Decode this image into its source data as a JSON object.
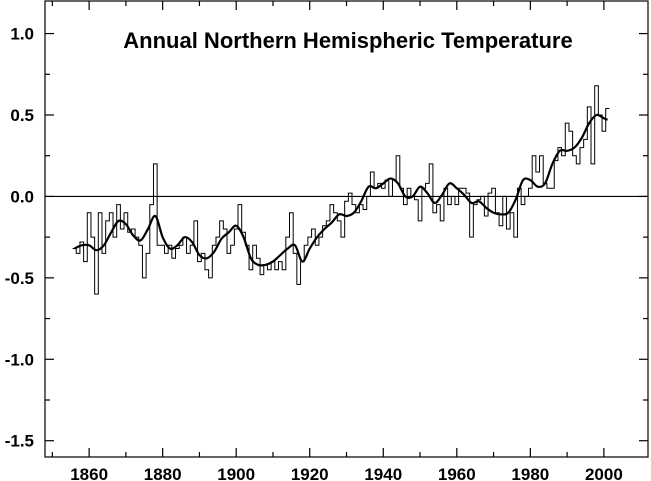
{
  "chart_data": {
    "type": "line",
    "title": "Annual Northern Hemispheric Temperature",
    "xlabel": "",
    "ylabel": "",
    "xlim": [
      1848,
      2012
    ],
    "ylim": [
      -1.6,
      1.2
    ],
    "grid": false,
    "zero_line": true,
    "x_ticks": [
      {
        "value": 1860,
        "label": "1860"
      },
      {
        "value": 1880,
        "label": "1880"
      },
      {
        "value": 1900,
        "label": "1900"
      },
      {
        "value": 1920,
        "label": "1920"
      },
      {
        "value": 1940,
        "label": "1940"
      },
      {
        "value": 1960,
        "label": "1960"
      },
      {
        "value": 1980,
        "label": "1980"
      },
      {
        "value": 2000,
        "label": "2000"
      }
    ],
    "y_ticks": [
      {
        "value": 1.0,
        "label": "1.0"
      },
      {
        "value": 0.5,
        "label": "0.5"
      },
      {
        "value": 0.0,
        "label": "0.0"
      },
      {
        "value": -0.5,
        "label": "-0.5"
      },
      {
        "value": -1.0,
        "label": "-1.0"
      },
      {
        "value": -1.5,
        "label": "-1.5"
      }
    ],
    "series": [
      {
        "style": "step",
        "x": [
          1856,
          1857,
          1858,
          1859,
          1860,
          1861,
          1862,
          1863,
          1864,
          1865,
          1866,
          1867,
          1868,
          1869,
          1870,
          1871,
          1872,
          1873,
          1874,
          1875,
          1876,
          1877,
          1878,
          1879,
          1880,
          1881,
          1882,
          1883,
          1884,
          1885,
          1886,
          1887,
          1888,
          1889,
          1890,
          1891,
          1892,
          1893,
          1894,
          1895,
          1896,
          1897,
          1898,
          1899,
          1900,
          1901,
          1902,
          1903,
          1904,
          1905,
          1906,
          1907,
          1908,
          1909,
          1910,
          1911,
          1912,
          1913,
          1914,
          1915,
          1916,
          1917,
          1918,
          1919,
          1920,
          1921,
          1922,
          1923,
          1924,
          1925,
          1926,
          1927,
          1928,
          1929,
          1930,
          1931,
          1932,
          1933,
          1934,
          1935,
          1936,
          1937,
          1938,
          1939,
          1940,
          1941,
          1942,
          1943,
          1944,
          1945,
          1946,
          1947,
          1948,
          1949,
          1950,
          1951,
          1952,
          1953,
          1954,
          1955,
          1956,
          1957,
          1958,
          1959,
          1960,
          1961,
          1962,
          1963,
          1964,
          1965,
          1966,
          1967,
          1968,
          1969,
          1970,
          1971,
          1972,
          1973,
          1974,
          1975,
          1976,
          1977,
          1978,
          1979,
          1980,
          1981,
          1982,
          1983,
          1984,
          1985,
          1986,
          1987,
          1988,
          1989,
          1990,
          1991,
          1992,
          1993,
          1994,
          1995,
          1996,
          1997,
          1998,
          1999,
          2000,
          2001
        ],
        "values": [
          -0.32,
          -0.35,
          -0.28,
          -0.4,
          -0.1,
          -0.25,
          -0.6,
          -0.1,
          -0.35,
          -0.15,
          -0.1,
          -0.25,
          -0.05,
          -0.2,
          -0.1,
          -0.22,
          -0.2,
          -0.25,
          -0.3,
          -0.5,
          -0.35,
          -0.05,
          0.2,
          -0.3,
          -0.3,
          -0.35,
          -0.3,
          -0.38,
          -0.32,
          -0.3,
          -0.25,
          -0.35,
          -0.3,
          -0.15,
          -0.4,
          -0.35,
          -0.45,
          -0.5,
          -0.3,
          -0.25,
          -0.15,
          -0.2,
          -0.35,
          -0.3,
          -0.2,
          -0.05,
          -0.22,
          -0.3,
          -0.45,
          -0.3,
          -0.38,
          -0.48,
          -0.42,
          -0.45,
          -0.4,
          -0.45,
          -0.4,
          -0.45,
          -0.25,
          -0.1,
          -0.35,
          -0.54,
          -0.4,
          -0.3,
          -0.25,
          -0.2,
          -0.3,
          -0.25,
          -0.18,
          -0.15,
          -0.05,
          -0.1,
          -0.15,
          -0.25,
          -0.03,
          0.02,
          -0.05,
          -0.1,
          -0.05,
          -0.08,
          0.0,
          0.15,
          0.05,
          0.08,
          0.05,
          0.1,
          0.0,
          0.1,
          0.25,
          0.05,
          -0.05,
          0.05,
          0.0,
          -0.02,
          -0.15,
          0.05,
          0.08,
          0.2,
          -0.1,
          -0.05,
          -0.15,
          0.05,
          -0.05,
          0.0,
          -0.05,
          0.05,
          0.05,
          0.02,
          -0.25,
          -0.05,
          -0.02,
          0.0,
          -0.12,
          0.02,
          0.05,
          -0.1,
          -0.18,
          0.0,
          -0.2,
          -0.1,
          -0.25,
          0.05,
          -0.05,
          0.0,
          0.05,
          0.25,
          0.15,
          0.25,
          0.08,
          0.05,
          0.05,
          0.22,
          0.3,
          0.25,
          0.45,
          0.4,
          0.25,
          0.2,
          0.3,
          0.35,
          0.55,
          0.2,
          0.68,
          0.5,
          0.4,
          0.54
        ],
        "color": "#000000"
      },
      {
        "style": "smooth",
        "x": [
          1856,
          1858,
          1860,
          1862,
          1864,
          1866,
          1868,
          1870,
          1872,
          1874,
          1876,
          1878,
          1880,
          1882,
          1884,
          1886,
          1888,
          1890,
          1892,
          1894,
          1896,
          1898,
          1900,
          1902,
          1904,
          1906,
          1908,
          1910,
          1912,
          1914,
          1916,
          1918,
          1920,
          1922,
          1924,
          1926,
          1928,
          1930,
          1932,
          1934,
          1936,
          1938,
          1940,
          1942,
          1944,
          1946,
          1948,
          1950,
          1952,
          1954,
          1956,
          1958,
          1960,
          1962,
          1964,
          1966,
          1968,
          1970,
          1972,
          1974,
          1976,
          1978,
          1980,
          1982,
          1984,
          1986,
          1988,
          1990,
          1992,
          1994,
          1996,
          1998,
          2000,
          2001
        ],
        "values": [
          -0.32,
          -0.3,
          -0.3,
          -0.33,
          -0.3,
          -0.22,
          -0.15,
          -0.17,
          -0.24,
          -0.27,
          -0.2,
          -0.12,
          -0.25,
          -0.32,
          -0.3,
          -0.25,
          -0.28,
          -0.36,
          -0.38,
          -0.34,
          -0.26,
          -0.22,
          -0.18,
          -0.25,
          -0.38,
          -0.42,
          -0.42,
          -0.4,
          -0.36,
          -0.32,
          -0.3,
          -0.4,
          -0.32,
          -0.25,
          -0.2,
          -0.16,
          -0.11,
          -0.12,
          -0.1,
          -0.03,
          0.06,
          0.05,
          0.08,
          0.11,
          0.08,
          0.0,
          0.0,
          0.06,
          0.02,
          -0.04,
          0.01,
          0.08,
          0.05,
          0.01,
          -0.04,
          -0.03,
          -0.07,
          -0.1,
          -0.11,
          -0.1,
          -0.02,
          0.1,
          0.1,
          0.06,
          0.08,
          0.2,
          0.28,
          0.28,
          0.3,
          0.36,
          0.45,
          0.5,
          0.48,
          0.47
        ],
        "color": "#000000"
      }
    ]
  }
}
